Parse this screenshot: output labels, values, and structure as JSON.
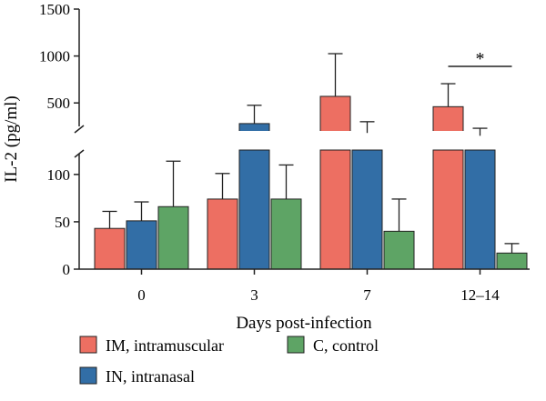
{
  "chart_data": {
    "type": "bar",
    "xlabel": "Days post-infection",
    "ylabel": "IL-2 (pg/ml)",
    "categories": [
      "0",
      "3",
      "7",
      "12–14"
    ],
    "y_axis_break": true,
    "lower_segment": {
      "ylim": [
        0,
        120
      ],
      "ticks": [
        0,
        50,
        100
      ]
    },
    "upper_segment": {
      "ylim": [
        250,
        1500
      ],
      "ticks": [
        500,
        1000,
        1500
      ]
    },
    "series": [
      {
        "name": "IM, intramuscular",
        "color": "#ed6f62",
        "values": [
          43,
          74,
          570,
          460
        ],
        "errors": [
          18,
          27,
          455,
          245
        ]
      },
      {
        "name": "IN, intranasal",
        "color": "#326ea6",
        "values": [
          51,
          280,
          180,
          150
        ],
        "errors": [
          20,
          195,
          120,
          80
        ]
      },
      {
        "name": "C, control",
        "color": "#5ea465",
        "values": [
          66,
          74,
          40,
          17
        ],
        "errors": [
          48,
          36,
          34,
          10
        ]
      }
    ],
    "annotations": [
      {
        "text": "*",
        "between_categories": [
          "12–14",
          "12–14"
        ],
        "series": [
          "IM, intramuscular",
          "C, control"
        ]
      }
    ],
    "legend": {
      "position": "bottom",
      "columns": 2
    },
    "grid": false
  }
}
